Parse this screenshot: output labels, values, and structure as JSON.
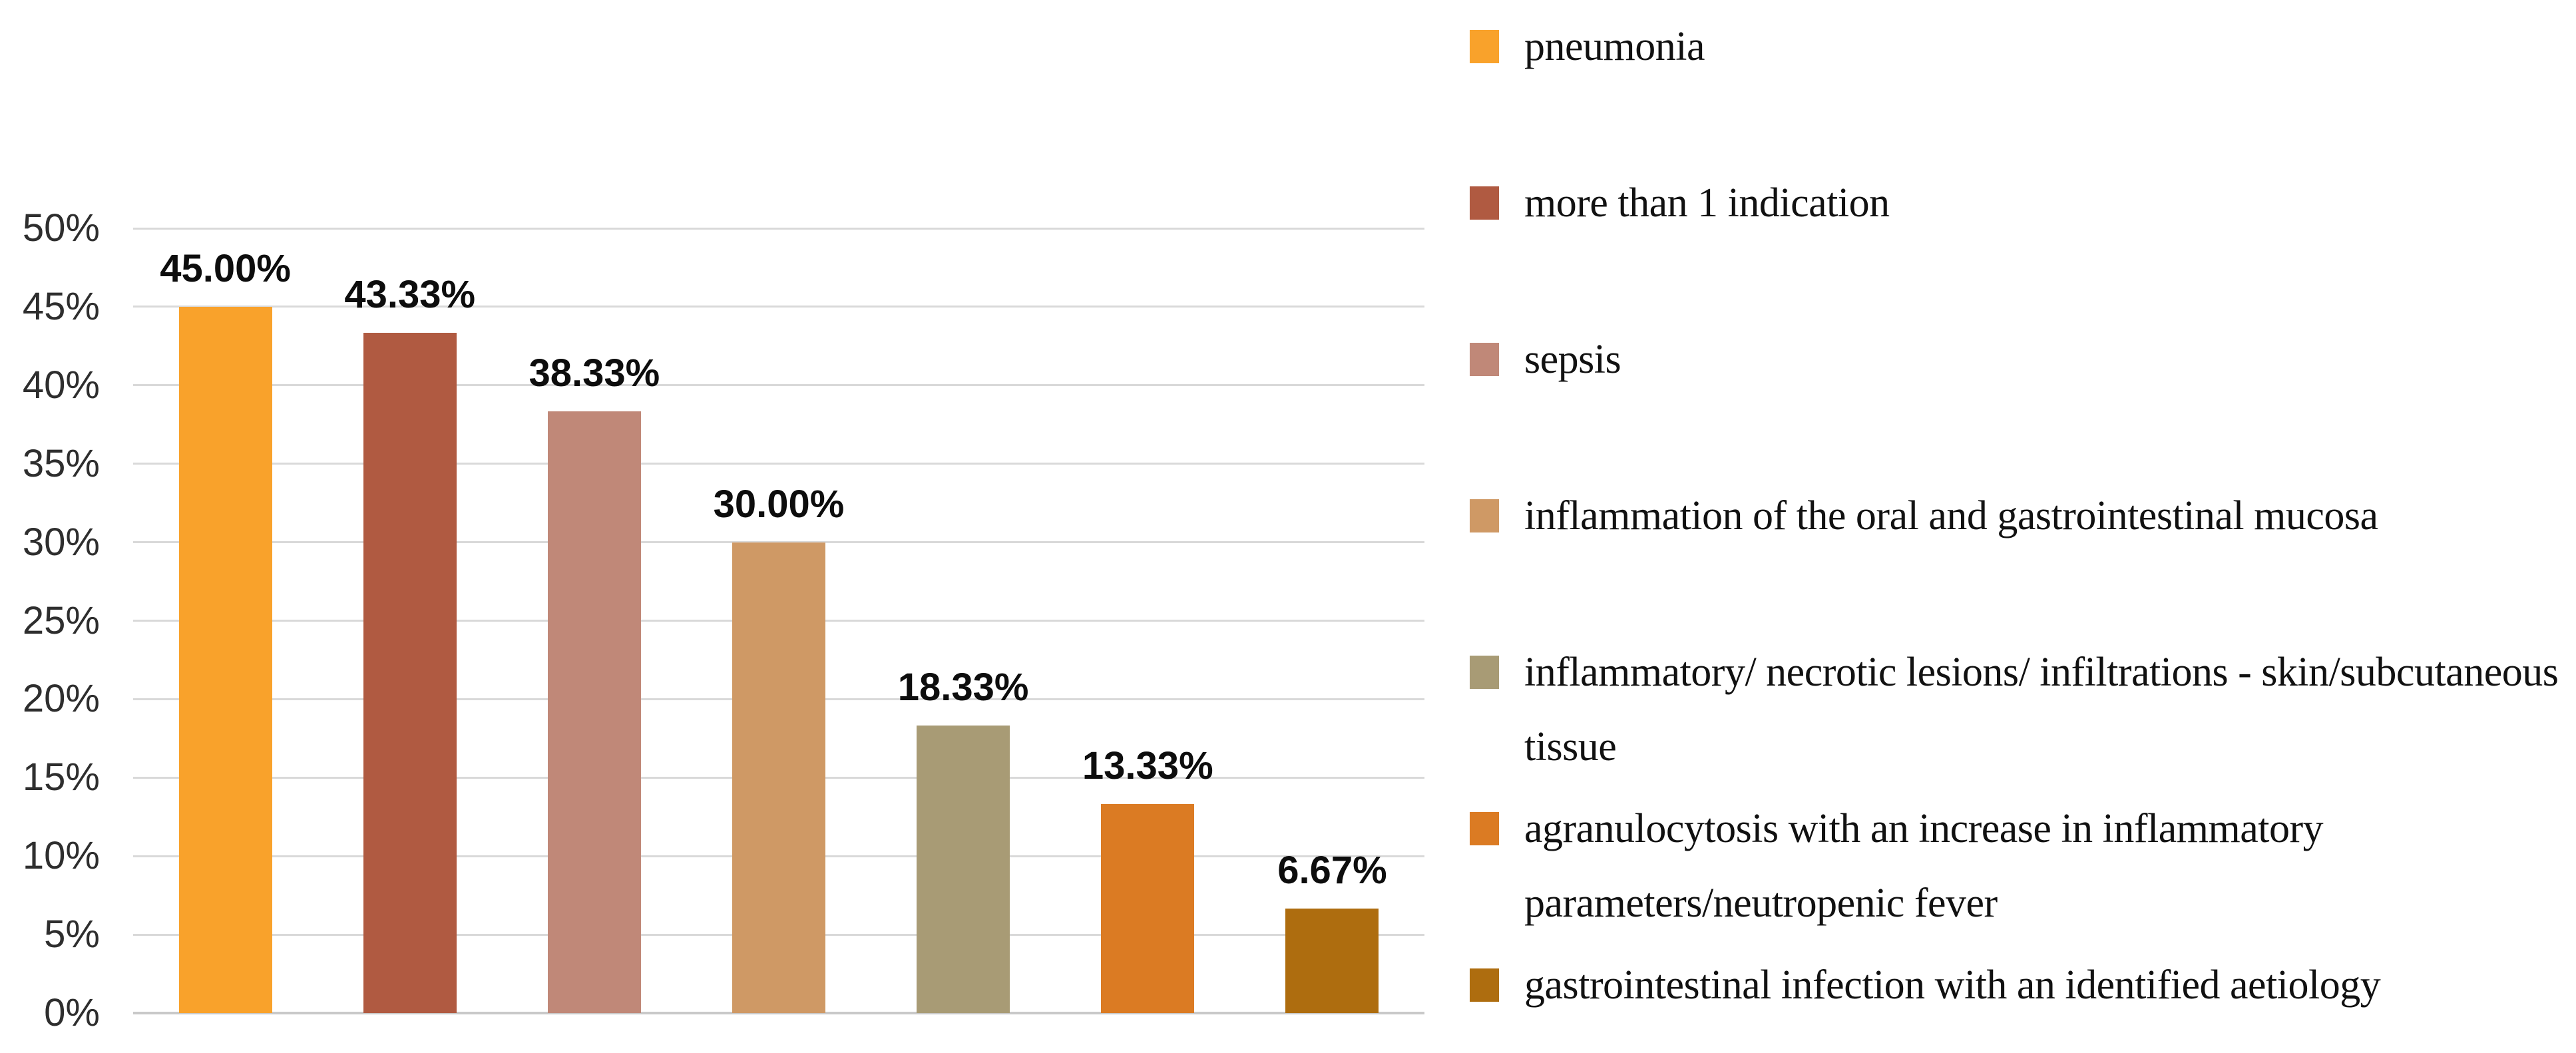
{
  "chart_data": {
    "type": "bar",
    "title": "",
    "xlabel": "",
    "ylabel": "",
    "ylim": [
      0,
      50
    ],
    "grid": true,
    "legend_position": "right",
    "categories": [
      "pneumonia",
      "more than 1 indication",
      "sepsis",
      "inflammation of the oral and gastrointestinal mucosa",
      "inflammatory/ necrotic lesions/ infiltrations - skin/subcutaneous tissue",
      "agranulocytosis with an increase in inflammatory parameters/neutropenic fever",
      "gastrointestinal infection with an identified aetiology"
    ],
    "values": [
      45.0,
      43.33,
      38.33,
      30.0,
      18.33,
      13.33,
      6.67
    ],
    "data_labels": [
      "45.00%",
      "43.33%",
      "38.33%",
      "30.00%",
      "18.33%",
      "13.33%",
      "6.67%"
    ],
    "colors": [
      "#F9A22B",
      "#B05A41",
      "#C08878",
      "#CF9965",
      "#A89B75",
      "#DB7B23",
      "#AE6D0F"
    ],
    "y_axis": {
      "min": 0,
      "max": 50,
      "step": 5,
      "ticks": [
        "0%",
        "5%",
        "10%",
        "15%",
        "20%",
        "25%",
        "30%",
        "35%",
        "40%",
        "45%",
        "50%"
      ]
    }
  }
}
